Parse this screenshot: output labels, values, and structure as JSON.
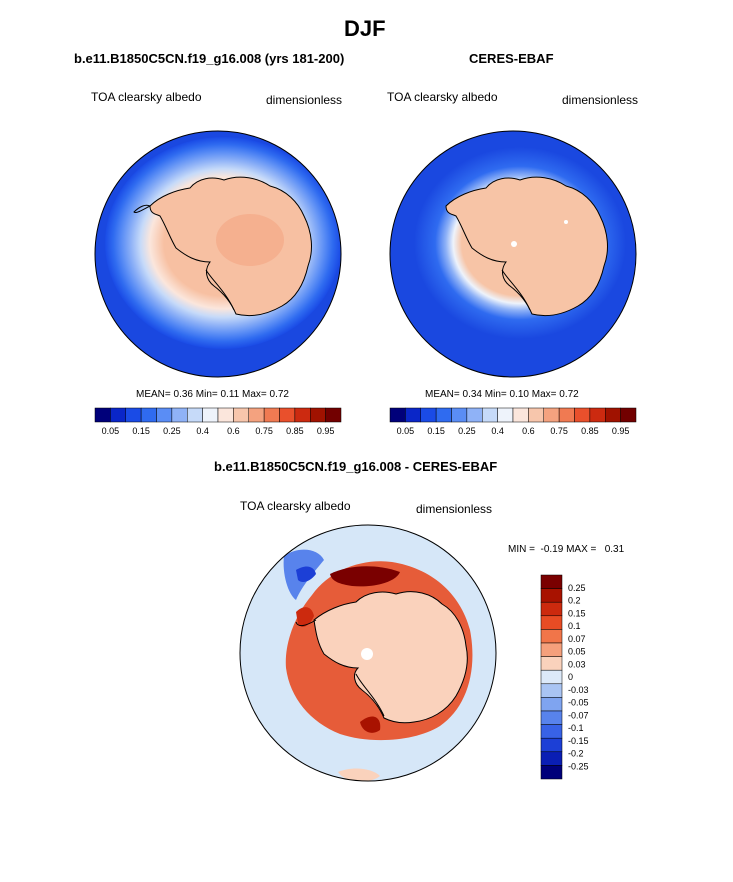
{
  "figure_title": "DJF",
  "chart_data": [
    {
      "type": "heatmap",
      "projection": "south-polar stereographic",
      "title": "b.e11.B1850C5CN.f19_g16.008 (yrs 181-200)",
      "left_label": "TOA clearsky albedo",
      "right_label": "dimensionless",
      "stats": {
        "mean_label": "MEAN=",
        "mean": "0.36",
        "min_label": "Min=",
        "min": "0.11",
        "max_label": "Max=",
        "max": "0.72"
      },
      "colorbar_ticks": [
        "0.05",
        "0.15",
        "0.25",
        "0.4",
        "0.6",
        "0.75",
        "0.85",
        "0.95"
      ]
    },
    {
      "type": "heatmap",
      "projection": "south-polar stereographic",
      "title": "CERES-EBAF",
      "left_label": "TOA clearsky albedo",
      "right_label": "dimensionless",
      "stats": {
        "mean_label": "MEAN=",
        "mean": "0.34",
        "min_label": "Min=",
        "min": "0.10",
        "max_label": "Max=",
        "max": "0.72"
      },
      "colorbar_ticks": [
        "0.05",
        "0.15",
        "0.25",
        "0.4",
        "0.6",
        "0.75",
        "0.85",
        "0.95"
      ]
    },
    {
      "type": "heatmap",
      "projection": "south-polar stereographic",
      "title": "b.e11.B1850C5CN.f19_g16.008 - CERES-EBAF",
      "left_label": "TOA clearsky albedo",
      "right_label": "dimensionless",
      "minmax_text": "MIN =  -0.19 MAX =   0.31",
      "colorbar_ticks": [
        "0.25",
        "0.2",
        "0.15",
        "0.1",
        "0.07",
        "0.05",
        "0.03",
        "0",
        "-0.03",
        "-0.05",
        "-0.07",
        "-0.1",
        "-0.15",
        "-0.2",
        "-0.25"
      ]
    }
  ],
  "colors": {
    "seq": [
      "#00007a",
      "#0a26c8",
      "#1a4be6",
      "#2f6bf0",
      "#5a8df5",
      "#8fb2f7",
      "#c6daf9",
      "#eef3fb",
      "#fbe6dc",
      "#f7c6ac",
      "#f4a27f",
      "#f07a52",
      "#e9502c",
      "#cc2a10",
      "#a01200",
      "#720000"
    ],
    "div": [
      "#7a0000",
      "#a81200",
      "#cc2a0e",
      "#e84c24",
      "#f17549",
      "#f5a07c",
      "#fad2bc",
      "#dce9f9",
      "#a9c4f3",
      "#7fa4f0",
      "#5883ec",
      "#3862e6",
      "#1c3fd6",
      "#0a1eb4",
      "#00007a"
    ],
    "ocean": "#1a48e0",
    "antarctica_model": "#f7c0a2",
    "antarctica_obs": "#f7c4a6",
    "diff_bg": "#d6e7f8"
  }
}
